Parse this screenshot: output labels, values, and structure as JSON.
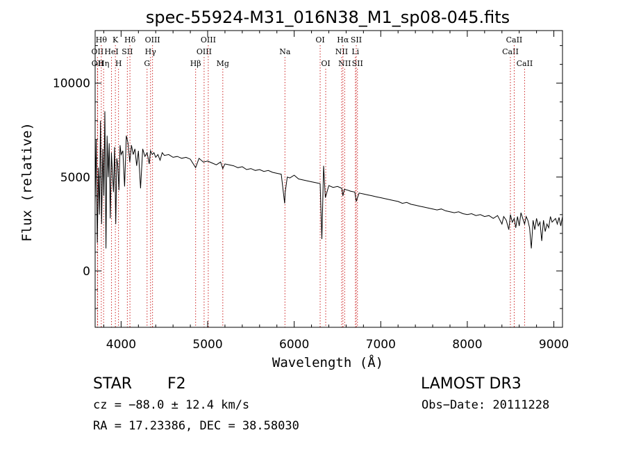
{
  "chart_data": {
    "type": "line",
    "title": "spec-55924-M31_016N38_M1_sp08-045.fits",
    "xlabel": "Wavelength (Å)",
    "ylabel": "Flux (relative)",
    "xlim": [
      3700,
      9100
    ],
    "ylim": [
      -3000,
      12800
    ],
    "xticks": [
      4000,
      5000,
      6000,
      7000,
      8000,
      9000
    ],
    "xtick_labels": [
      "4000",
      "5000",
      "6000",
      "7000",
      "8000",
      "9000"
    ],
    "yticks": [
      0,
      5000,
      10000
    ],
    "ytick_labels": [
      "0",
      "5000",
      "10000"
    ],
    "grid": false,
    "line_color": "#000000",
    "marker_color": "#cc2222",
    "series": [
      {
        "name": "flux",
        "x": [
          3700,
          3712,
          3725,
          3738,
          3750,
          3762,
          3775,
          3788,
          3800,
          3812,
          3825,
          3838,
          3850,
          3862,
          3875,
          3888,
          3900,
          3912,
          3925,
          3938,
          3950,
          3962,
          3975,
          3988,
          4000,
          4020,
          4040,
          4060,
          4080,
          4100,
          4120,
          4140,
          4160,
          4180,
          4200,
          4225,
          4250,
          4275,
          4300,
          4325,
          4340,
          4360,
          4380,
          4400,
          4425,
          4450,
          4475,
          4500,
          4550,
          4600,
          4650,
          4700,
          4750,
          4800,
          4861,
          4900,
          4950,
          5000,
          5050,
          5100,
          5150,
          5175,
          5200,
          5250,
          5300,
          5350,
          5400,
          5450,
          5500,
          5550,
          5600,
          5650,
          5700,
          5750,
          5800,
          5850,
          5890,
          5896,
          5920,
          5950,
          6000,
          6050,
          6100,
          6150,
          6200,
          6250,
          6300,
          6320,
          6340,
          6360,
          6400,
          6450,
          6500,
          6550,
          6563,
          6580,
          6620,
          6650,
          6700,
          6717,
          6731,
          6750,
          6800,
          6850,
          6900,
          6950,
          7000,
          7050,
          7100,
          7150,
          7200,
          7250,
          7300,
          7350,
          7400,
          7450,
          7500,
          7550,
          7600,
          7650,
          7700,
          7750,
          7800,
          7850,
          7900,
          7950,
          8000,
          8050,
          8100,
          8150,
          8200,
          8250,
          8300,
          8350,
          8400,
          8420,
          8450,
          8480,
          8498,
          8520,
          8542,
          8560,
          8580,
          8600,
          8620,
          8640,
          8662,
          8680,
          8700,
          8720,
          8740,
          8760,
          8780,
          8800,
          8820,
          8840,
          8860,
          8880,
          8900,
          8920,
          8940,
          8960,
          8980,
          9000,
          9020,
          9040,
          9060,
          9080,
          9100
        ],
        "y": [
          3500,
          7000,
          1500,
          5500,
          3000,
          8000,
          2500,
          6500,
          4000,
          8500,
          1200,
          7200,
          5000,
          6800,
          2800,
          6300,
          5200,
          4200,
          6600,
          2500,
          6000,
          5600,
          4300,
          6700,
          6200,
          6400,
          4500,
          7200,
          6800,
          5800,
          6700,
          6200,
          6500,
          5600,
          6400,
          4400,
          6500,
          6100,
          6300,
          5700,
          6400,
          6200,
          6300,
          6050,
          6200,
          5900,
          6300,
          6150,
          6200,
          6050,
          6100,
          6000,
          6050,
          5950,
          5500,
          6000,
          5800,
          5850,
          5750,
          5650,
          5800,
          5450,
          5700,
          5650,
          5600,
          5500,
          5550,
          5400,
          5450,
          5350,
          5400,
          5300,
          5350,
          5250,
          5200,
          5150,
          3600,
          4200,
          5000,
          4950,
          5100,
          4900,
          4850,
          4800,
          4750,
          4700,
          4650,
          1700,
          5600,
          3900,
          4550,
          4450,
          4500,
          4400,
          4000,
          4350,
          4300,
          4250,
          4200,
          3700,
          3900,
          4150,
          4100,
          4050,
          4000,
          3950,
          3900,
          3850,
          3800,
          3750,
          3700,
          3600,
          3650,
          3550,
          3500,
          3450,
          3400,
          3350,
          3300,
          3250,
          3300,
          3200,
          3150,
          3100,
          3150,
          3050,
          3000,
          3050,
          2950,
          3000,
          2900,
          2950,
          2800,
          2950,
          2500,
          2900,
          2700,
          2200,
          3000,
          2600,
          2800,
          2300,
          2900,
          2400,
          3100,
          2800,
          2500,
          2900,
          2700,
          2300,
          1200,
          2700,
          2200,
          2800,
          2400,
          2600,
          1600,
          2700,
          2100,
          2500,
          2300,
          2900,
          2600,
          2700,
          2800,
          2500,
          2850,
          2400,
          2900
        ]
      }
    ],
    "line_markers": [
      {
        "wl": 3727,
        "label": "OII",
        "row": 2
      },
      {
        "wl": 3729,
        "label": "OII",
        "row": 3
      },
      {
        "wl": 3771,
        "label": "Hθ",
        "row": 1
      },
      {
        "wl": 3798,
        "label": "Hη",
        "row": 3
      },
      {
        "wl": 3889,
        "label": "HeI",
        "row": 2
      },
      {
        "wl": 3934,
        "label": "K",
        "row": 1
      },
      {
        "wl": 3970,
        "label": "H",
        "row": 3
      },
      {
        "wl": 4072,
        "label": "SII",
        "row": 2
      },
      {
        "wl": 4102,
        "label": "Hδ",
        "row": 1
      },
      {
        "wl": 4300,
        "label": "G",
        "row": 3
      },
      {
        "wl": 4340,
        "label": "Hγ",
        "row": 2
      },
      {
        "wl": 4363,
        "label": "OIII",
        "row": 1
      },
      {
        "wl": 4861,
        "label": "Hβ",
        "row": 3
      },
      {
        "wl": 4959,
        "label": "OIII",
        "row": 2
      },
      {
        "wl": 5007,
        "label": "OIII",
        "row": 1
      },
      {
        "wl": 5175,
        "label": "Mg",
        "row": 3
      },
      {
        "wl": 5893,
        "label": "Na",
        "row": 2
      },
      {
        "wl": 6300,
        "label": "OI",
        "row": 1
      },
      {
        "wl": 6364,
        "label": "OI",
        "row": 3
      },
      {
        "wl": 6548,
        "label": "NII",
        "row": 2
      },
      {
        "wl": 6563,
        "label": "Hα",
        "row": 1
      },
      {
        "wl": 6583,
        "label": "NII",
        "row": 3
      },
      {
        "wl": 6707,
        "label": "Li",
        "row": 2
      },
      {
        "wl": 6717,
        "label": "SII",
        "row": 1
      },
      {
        "wl": 6731,
        "label": "SII",
        "row": 3
      },
      {
        "wl": 8498,
        "label": "CaII",
        "row": 2
      },
      {
        "wl": 8542,
        "label": "CaII",
        "row": 1
      },
      {
        "wl": 8662,
        "label": "CaII",
        "row": 3
      }
    ]
  },
  "info": {
    "class_label": "STAR",
    "subclass_label": "F2",
    "survey": "LAMOST DR3",
    "redshift_text": "cz = −88.0 ± 12.4 km/s",
    "obs_date_text": "Obs−Date: 20111228",
    "coords_text": "RA =  17.23386, DEC =  38.58030"
  }
}
